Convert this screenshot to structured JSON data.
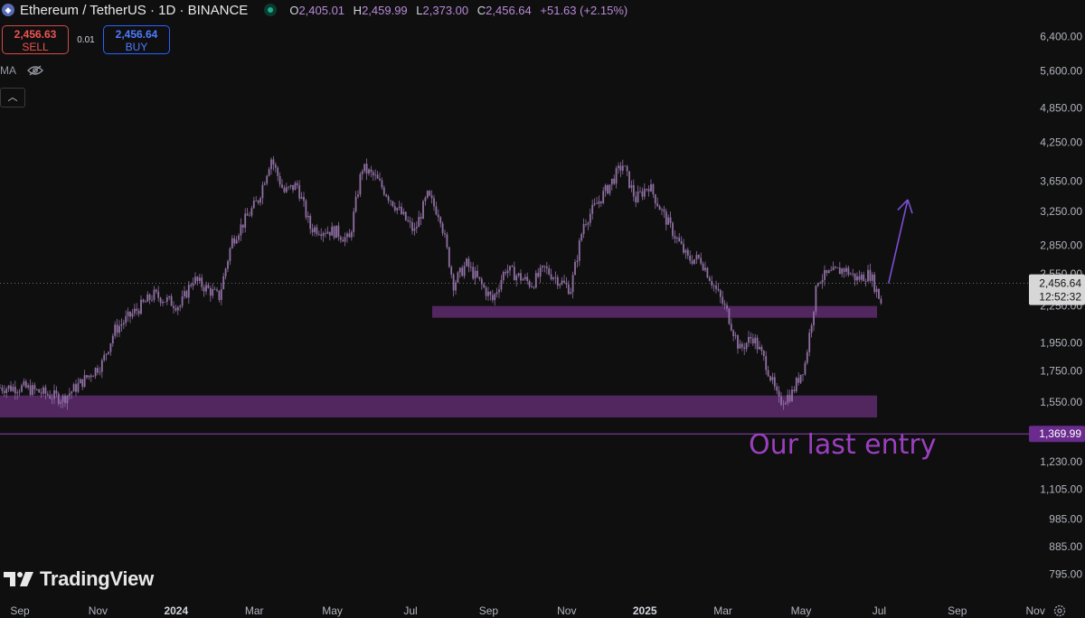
{
  "header": {
    "symbol_title": "Ethereum / TetherUS · 1D · BINANCE",
    "open_label": "O",
    "open": "2,405.01",
    "high_label": "H",
    "high": "2,459.99",
    "low_label": "L",
    "low": "2,373.00",
    "close_label": "C",
    "close": "2,456.64",
    "change": "+51.63 (+2.15%)"
  },
  "trade": {
    "sell_price": "2,456.63",
    "sell_label": "SELL",
    "spread": "0.01",
    "buy_price": "2,456.64",
    "buy_label": "BUY"
  },
  "indicator": {
    "label": "MA"
  },
  "brand": {
    "name": "TradingView"
  },
  "annotation": {
    "text": "Our last entry"
  },
  "icons": {
    "live": "live-status-icon",
    "eye": "eye-hidden-icon",
    "collapse": "chevron-up-icon",
    "settings": "gear-icon"
  },
  "colors": {
    "background": "#0f0f0f",
    "candles": "#8f6fa3",
    "zones": "#5e2a6d",
    "accent": "#8e44ad",
    "text": "#d1d4dc"
  },
  "chart_data": {
    "type": "candlestick",
    "scale": "log",
    "x_ticks": [
      "Sep",
      "Nov",
      "2024",
      "Mar",
      "May",
      "Jul",
      "Sep",
      "Nov",
      "2025",
      "Mar",
      "May",
      "Jul",
      "Sep",
      "Nov"
    ],
    "y_ticks": [
      "6,400.00",
      "5,600.00",
      "4,850.00",
      "4,250.00",
      "3,650.00",
      "3,250.00",
      "2,850.00",
      "2,550.00",
      "2,250.00",
      "1,950.00",
      "1,750.00",
      "1,550.00",
      "1,230.00",
      "1,105.00",
      "985.00",
      "885.00",
      "795.00"
    ],
    "y_tick_values": [
      6400,
      5600,
      4850,
      4250,
      3650,
      3250,
      2850,
      2550,
      2250,
      1950,
      1750,
      1550,
      1230,
      1105,
      985,
      885,
      795
    ],
    "current_price": {
      "value": 2456.64,
      "label": "2,456.64",
      "countdown": "12:52:32"
    },
    "horizontal_line": {
      "value": 1369.99,
      "label": "1,369.99"
    },
    "zones": [
      {
        "from": 2150,
        "to": 2250,
        "start": "Aug 2024",
        "end": "Aug 2025"
      },
      {
        "from": 1460,
        "to": 1590,
        "start": "Sep 2023",
        "end": "Aug 2025"
      }
    ],
    "price_path": [
      [
        "Sep 2023",
        1640
      ],
      [
        "Oct 2023",
        1570
      ],
      [
        "Oct 2023",
        1640
      ],
      [
        "Nov 2023",
        1800
      ],
      [
        "Nov 2023",
        2050
      ],
      [
        "Dec 2023",
        2250
      ],
      [
        "Dec 2023",
        2350
      ],
      [
        "Jan 2024",
        2250
      ],
      [
        "Jan 2024",
        2500
      ],
      [
        "Feb 2024",
        2330
      ],
      [
        "Feb 2024",
        2900
      ],
      [
        "Mar 2024",
        3400
      ],
      [
        "Mar 2024",
        4000
      ],
      [
        "Mar 2024",
        3500
      ],
      [
        "Apr 2024",
        3600
      ],
      [
        "Apr 2024",
        3050
      ],
      [
        "May 2024",
        3000
      ],
      [
        "May 2024",
        2900
      ],
      [
        "May 2024",
        3850
      ],
      [
        "Jun 2024",
        3700
      ],
      [
        "Jun 2024",
        3450
      ],
      [
        "Jul 2024",
        3000
      ],
      [
        "Jul 2024",
        3450
      ],
      [
        "Jul 2024",
        3200
      ],
      [
        "Aug 2024",
        2450
      ],
      [
        "Aug 2024",
        2650
      ],
      [
        "Sep 2024",
        2300
      ],
      [
        "Sep 2024",
        2600
      ],
      [
        "Oct 2024",
        2450
      ],
      [
        "Oct 2024",
        2600
      ],
      [
        "Nov 2024",
        2400
      ],
      [
        "Nov 2024",
        3100
      ],
      [
        "Dec 2024",
        3600
      ],
      [
        "Dec 2024",
        3900
      ],
      [
        "Dec 2024",
        3400
      ],
      [
        "Jan 2025",
        3600
      ],
      [
        "Jan 2025",
        3250
      ],
      [
        "Feb 2025",
        2700
      ],
      [
        "Feb 2025",
        2700
      ],
      [
        "Mar 2025",
        2200
      ],
      [
        "Mar 2025",
        1900
      ],
      [
        "Mar 2025",
        2000
      ],
      [
        "Apr 2025",
        1800
      ],
      [
        "Apr 2025",
        1550
      ],
      [
        "Apr 2025",
        1600
      ],
      [
        "May 2025",
        1800
      ],
      [
        "May 2025",
        2500
      ],
      [
        "Jun 2025",
        2600
      ],
      [
        "Jun 2025",
        2500
      ],
      [
        "Jun 2025",
        2550
      ],
      [
        "Jun 2025",
        2250
      ],
      [
        "Jul 2025",
        2456.64
      ]
    ],
    "projection_arrow": {
      "from": [
        "Jul 2025",
        2456.64
      ],
      "to": [
        "Aug 2025",
        3400
      ]
    }
  }
}
